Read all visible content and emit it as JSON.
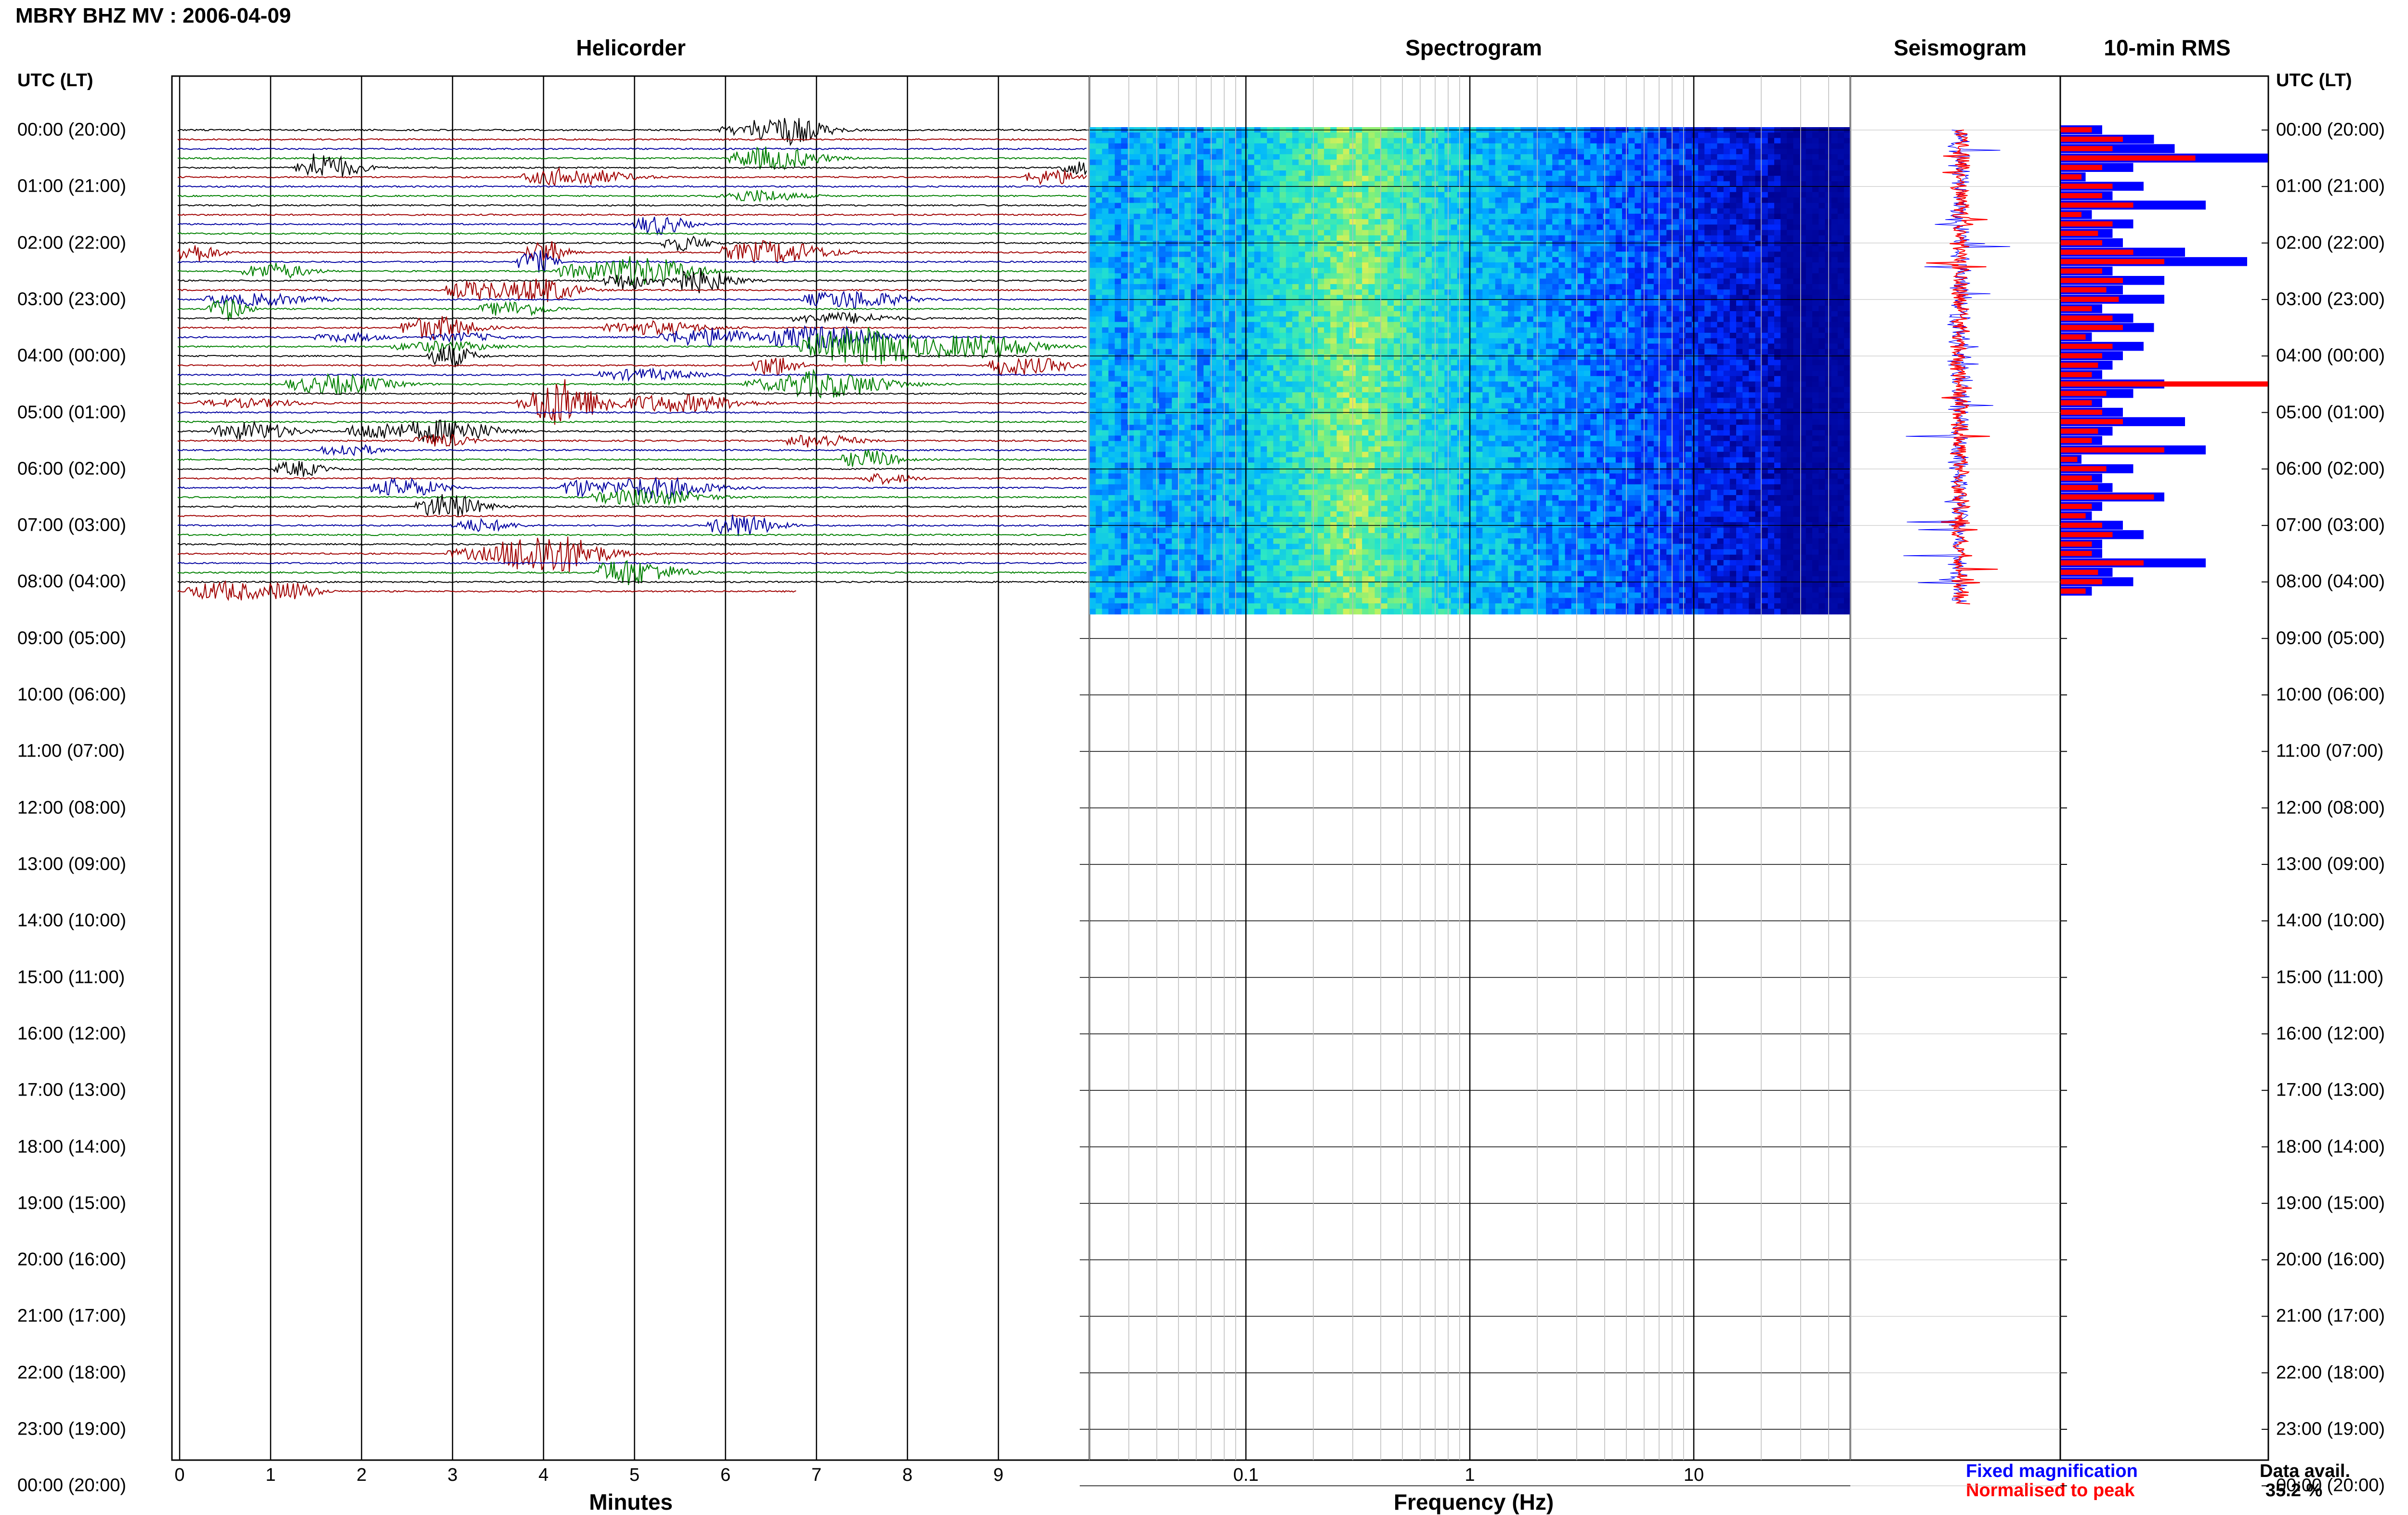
{
  "header": {
    "title": "MBRY BHZ MV : 2006-04-09"
  },
  "panels": {
    "helicorder": "Helicorder",
    "spectrogram": "Spectrogram",
    "seismogram": "Seismogram",
    "rms": "10-min RMS"
  },
  "axes": {
    "time_header_left": "UTC (LT)",
    "time_header_right": "UTC (LT)",
    "minutes_title": "Minutes",
    "frequency_title": "Frequency (Hz)"
  },
  "legend": {
    "fixed": "Fixed magnification",
    "normalised": "Normalised to peak",
    "fixed_color": "#0000ff",
    "normalised_color": "#ff0000"
  },
  "availability": {
    "label": "Data avail.",
    "value": "35.2 %"
  },
  "chart_data": {
    "type": "heatmap",
    "title": "MBRY BHZ MV : 2006-04-09",
    "time_labels": [
      "00:00 (20:00)",
      "01:00 (21:00)",
      "02:00 (22:00)",
      "03:00 (23:00)",
      "04:00 (00:00)",
      "05:00 (01:00)",
      "06:00 (02:00)",
      "07:00 (03:00)",
      "08:00 (04:00)",
      "09:00 (05:00)",
      "10:00 (06:00)",
      "11:00 (07:00)",
      "12:00 (08:00)",
      "13:00 (09:00)",
      "14:00 (10:00)",
      "15:00 (11:00)",
      "16:00 (12:00)",
      "17:00 (13:00)",
      "18:00 (14:00)",
      "19:00 (15:00)",
      "20:00 (16:00)",
      "21:00 (17:00)",
      "22:00 (18:00)",
      "23:00 (19:00)",
      "00:00 (20:00)"
    ],
    "minutes_ticks": [
      "0",
      "1",
      "2",
      "3",
      "4",
      "5",
      "6",
      "7",
      "8",
      "9"
    ],
    "minutes_range": [
      0,
      10
    ],
    "frequency_ticks": [
      "0.1",
      "1",
      "10"
    ],
    "frequency_range": [
      0.02,
      50
    ],
    "frequency_scale": "log",
    "trace_colors": [
      "#000000",
      "#a00000",
      "#0000a0",
      "#008000"
    ],
    "data_end_hours": 8.4,
    "rms_10min": {
      "fixed": [
        0.2,
        0.45,
        0.55,
        1.0,
        0.35,
        0.12,
        0.4,
        0.25,
        0.7,
        0.15,
        0.35,
        0.25,
        0.3,
        0.6,
        0.9,
        0.25,
        0.5,
        0.3,
        0.5,
        0.2,
        0.35,
        0.45,
        0.15,
        0.4,
        0.3,
        0.25,
        0.2,
        0.5,
        0.35,
        0.2,
        0.3,
        0.6,
        0.25,
        0.2,
        0.7,
        0.1,
        0.35,
        0.2,
        0.25,
        0.5,
        0.2,
        0.15,
        0.3,
        0.4,
        0.2,
        0.2,
        0.7,
        0.25,
        0.35,
        0.15
      ],
      "normalised": [
        0.15,
        0.3,
        0.25,
        0.65,
        0.2,
        0.1,
        0.25,
        0.2,
        0.35,
        0.1,
        0.25,
        0.18,
        0.2,
        0.35,
        0.5,
        0.2,
        0.3,
        0.22,
        0.28,
        0.15,
        0.25,
        0.3,
        0.12,
        0.25,
        0.2,
        0.18,
        0.15,
        1.0,
        0.22,
        0.15,
        0.2,
        0.3,
        0.18,
        0.15,
        0.5,
        0.08,
        0.22,
        0.15,
        0.18,
        0.45,
        0.15,
        0.12,
        0.2,
        0.25,
        0.15,
        0.15,
        0.4,
        0.18,
        0.2,
        0.12
      ]
    }
  }
}
